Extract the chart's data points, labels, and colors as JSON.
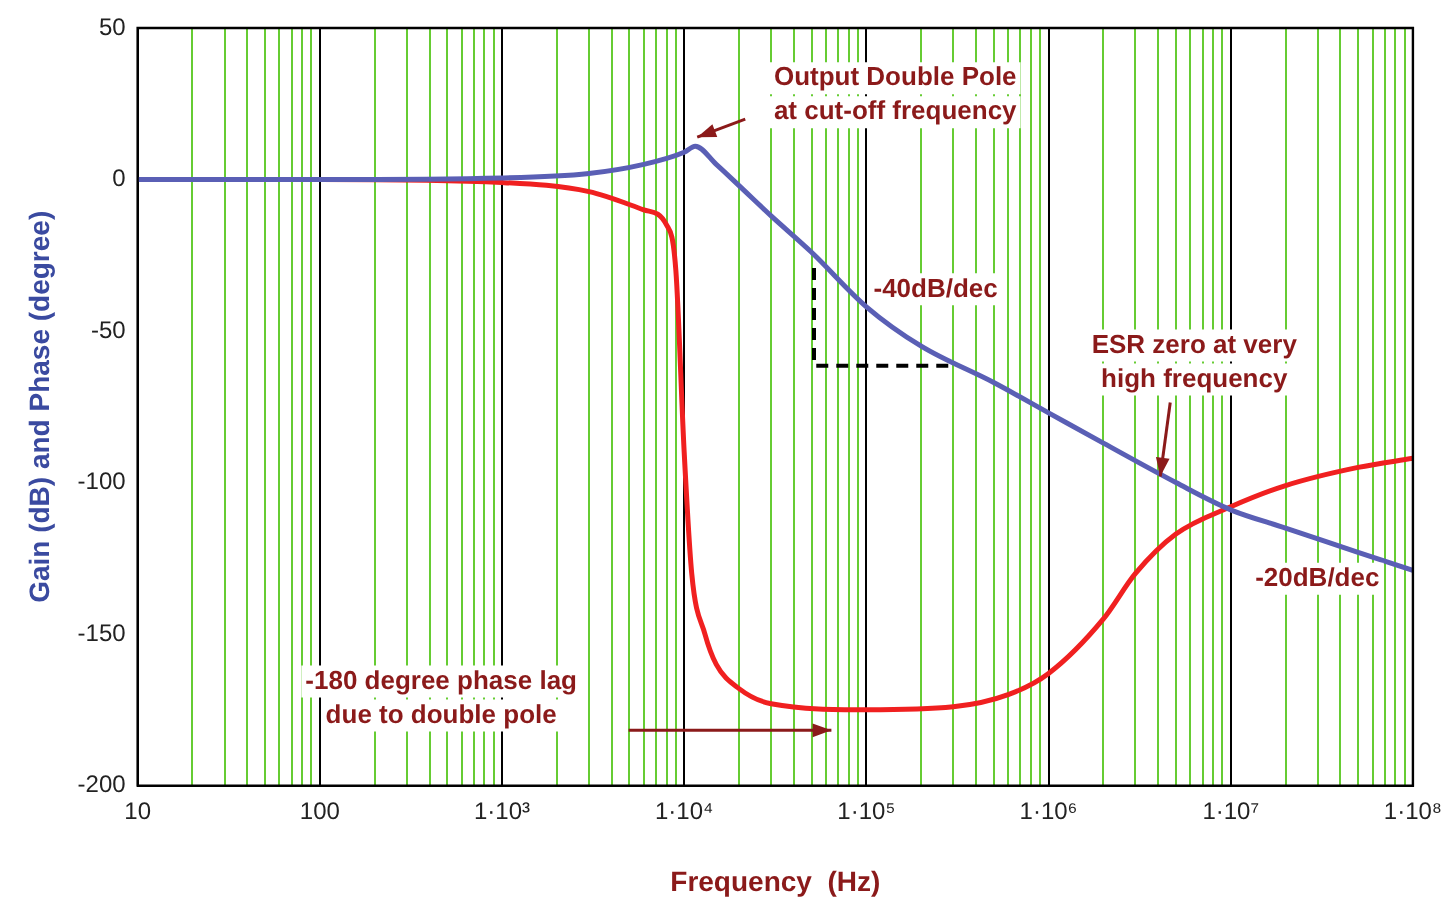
{
  "chart_data": {
    "type": "line",
    "xlabel": "Frequency  (Hz)",
    "ylabel": "Gain (dB) and Phase (degree)",
    "log": "x",
    "grid": "x",
    "marker": "none",
    "line_style": "solid",
    "xlim": [
      10,
      100000000
    ],
    "ylim": [
      -200,
      50
    ],
    "yticks": [
      -200,
      -150,
      -100,
      -50,
      0,
      50
    ],
    "xticks": [
      {
        "value": 10,
        "label": "10"
      },
      {
        "value": 20,
        "label": null
      },
      {
        "value": 30,
        "label": null
      },
      {
        "value": 40,
        "label": null
      },
      {
        "value": 50,
        "label": null
      },
      {
        "value": 60,
        "label": null
      },
      {
        "value": 70,
        "label": null
      },
      {
        "value": 80,
        "label": null
      },
      {
        "value": 90,
        "label": null
      },
      {
        "value": 100,
        "label": "100"
      },
      {
        "value": 200,
        "label": null
      },
      {
        "value": 300,
        "label": null
      },
      {
        "value": 400,
        "label": null
      },
      {
        "value": 500,
        "label": null
      },
      {
        "value": 600,
        "label": null
      },
      {
        "value": 700,
        "label": null
      },
      {
        "value": 800,
        "label": null
      },
      {
        "value": 900,
        "label": null
      },
      {
        "value": 1000,
        "label": "1·10³"
      },
      {
        "value": 2000,
        "label": null
      },
      {
        "value": 3000,
        "label": null
      },
      {
        "value": 4000,
        "label": null
      },
      {
        "value": 5000,
        "label": null
      },
      {
        "value": 6000,
        "label": null
      },
      {
        "value": 7000,
        "label": null
      },
      {
        "value": 8000,
        "label": null
      },
      {
        "value": 9000,
        "label": null
      },
      {
        "value": 10000,
        "label": "1·10⁴"
      },
      {
        "value": 20000,
        "label": null
      },
      {
        "value": 30000,
        "label": null
      },
      {
        "value": 40000,
        "label": null
      },
      {
        "value": 50000,
        "label": null
      },
      {
        "value": 60000,
        "label": null
      },
      {
        "value": 70000,
        "label": null
      },
      {
        "value": 80000,
        "label": null
      },
      {
        "value": 90000,
        "label": null
      },
      {
        "value": 100000,
        "label": "1·10⁵"
      },
      {
        "value": 200000,
        "label": null
      },
      {
        "value": 300000,
        "label": null
      },
      {
        "value": 400000,
        "label": null
      },
      {
        "value": 500000,
        "label": null
      },
      {
        "value": 600000,
        "label": null
      },
      {
        "value": 700000,
        "label": null
      },
      {
        "value": 800000,
        "label": null
      },
      {
        "value": 900000,
        "label": null
      },
      {
        "value": 1000000,
        "label": "1·10⁶"
      },
      {
        "value": 2000000,
        "label": null
      },
      {
        "value": 3000000,
        "label": null
      },
      {
        "value": 4000000,
        "label": null
      },
      {
        "value": 5000000,
        "label": null
      },
      {
        "value": 6000000,
        "label": null
      },
      {
        "value": 7000000,
        "label": null
      },
      {
        "value": 8000000,
        "label": null
      },
      {
        "value": 9000000,
        "label": null
      },
      {
        "value": 10000000,
        "label": "1·10⁷"
      },
      {
        "value": 20000000,
        "label": null
      },
      {
        "value": 30000000,
        "label": null
      },
      {
        "value": 40000000,
        "label": null
      },
      {
        "value": 50000000,
        "label": null
      },
      {
        "value": 60000000,
        "label": null
      },
      {
        "value": 70000000,
        "label": null
      },
      {
        "value": 80000000,
        "label": null
      },
      {
        "value": 90000000,
        "label": null
      },
      {
        "value": 100000000,
        "label": "1·10⁸"
      }
    ],
    "series": [
      {
        "color": "#5a5fb5",
        "x": [
          10,
          100,
          1000,
          3000,
          6000,
          10000,
          11500,
          15000,
          20000,
          30000,
          50000,
          100000,
          200000,
          500000,
          1000000,
          2000000,
          5000000,
          10000000,
          20000000,
          50000000,
          100000000
        ],
        "values": [
          0,
          0,
          0.5,
          2,
          5,
          9,
          11,
          5,
          -2,
          -12,
          -24,
          -42,
          -55,
          -67,
          -77,
          -87,
          -100,
          -109,
          -115,
          -123,
          -129
        ]
      },
      {
        "color": "#f02020",
        "x": [
          10,
          100,
          1000,
          3000,
          6000,
          8000,
          9000,
          10000,
          11000,
          13000,
          15000,
          20000,
          30000,
          100000,
          300000,
          600000,
          1000000,
          2000000,
          3000000,
          5000000,
          10000000,
          20000000,
          50000000,
          100000000
        ],
        "values": [
          0,
          0,
          -1,
          -4,
          -10,
          -15,
          -30,
          -90,
          -130,
          -150,
          -160,
          -168,
          -173,
          -175,
          -174,
          -170,
          -163,
          -145,
          -130,
          -117,
          -108,
          -101,
          -95,
          -92
        ]
      }
    ],
    "annotations": [
      {
        "text": "Output Double Pole\nat cut-off frequency",
        "x": 11500,
        "y": 12
      },
      "-40dB/dec",
      {
        "text": "ESR zero at very\nhigh frequency",
        "x": 4000000,
        "y": -100
      },
      "-20dB/dec",
      "-180 degree phase lag\ndue to double pole"
    ]
  }
}
